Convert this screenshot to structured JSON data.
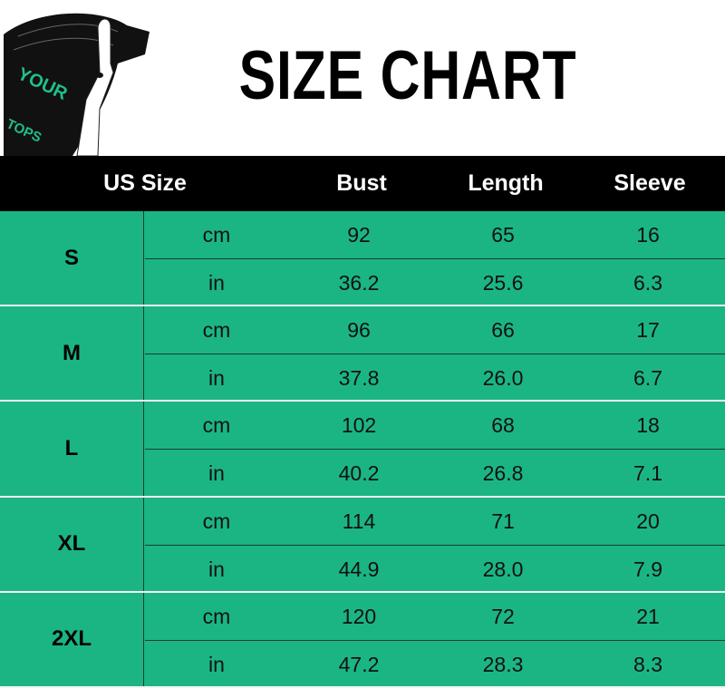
{
  "logo": {
    "text_line1": "YOUR",
    "text_line2": "TOPS"
  },
  "title": "SIZE CHART",
  "colors": {
    "header_bg": "#000000",
    "table_bg": "#1bb584",
    "logo_text": "#1fc08a"
  },
  "header": {
    "size": "US Size",
    "bust": "Bust",
    "length": "Length",
    "sleeve": "Sleeve"
  },
  "rows": [
    {
      "size": "S",
      "cm": {
        "unit": "cm",
        "bust": "92",
        "length": "65",
        "sleeve": "16"
      },
      "in": {
        "unit": "in",
        "bust": "36.2",
        "length": "25.6",
        "sleeve": "6.3"
      }
    },
    {
      "size": "M",
      "cm": {
        "unit": "cm",
        "bust": "96",
        "length": "66",
        "sleeve": "17"
      },
      "in": {
        "unit": "in",
        "bust": "37.8",
        "length": "26.0",
        "sleeve": "6.7"
      }
    },
    {
      "size": "L",
      "cm": {
        "unit": "cm",
        "bust": "102",
        "length": "68",
        "sleeve": "18"
      },
      "in": {
        "unit": "in",
        "bust": "40.2",
        "length": "26.8",
        "sleeve": "7.1"
      }
    },
    {
      "size": "XL",
      "cm": {
        "unit": "cm",
        "bust": "114",
        "length": "71",
        "sleeve": "20"
      },
      "in": {
        "unit": "in",
        "bust": "44.9",
        "length": "28.0",
        "sleeve": "7.9"
      }
    },
    {
      "size": "2XL",
      "cm": {
        "unit": "cm",
        "bust": "120",
        "length": "72",
        "sleeve": "21"
      },
      "in": {
        "unit": "in",
        "bust": "47.2",
        "length": "28.3",
        "sleeve": "8.3"
      }
    }
  ]
}
